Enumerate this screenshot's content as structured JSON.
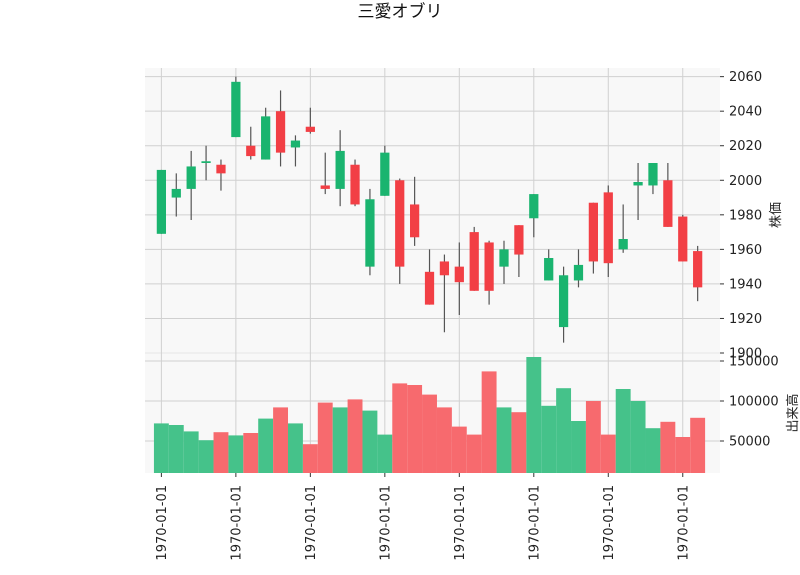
{
  "chart_data": {
    "type": "candlestick",
    "title": "三愛オブリ",
    "price_panel": {
      "ylabel": "株価",
      "ylim": [
        1900,
        2065
      ],
      "yticks": [
        1900,
        1920,
        1940,
        1960,
        1980,
        2000,
        2020,
        2040,
        2060
      ]
    },
    "volume_panel": {
      "ylabel": "出来高",
      "ylim": [
        10000,
        160000
      ],
      "yticks": [
        50000,
        100000,
        150000
      ]
    },
    "x_tick_labels": [
      "1970-01-01",
      "1970-01-01",
      "1970-01-01",
      "1970-01-01",
      "1970-01-01",
      "1970-01-01",
      "1970-01-01",
      "1970-01-01"
    ],
    "x_tick_candle_index": [
      0,
      5,
      10,
      15,
      20,
      25,
      30,
      35
    ],
    "grid": true,
    "colors": {
      "up": "#1ab46f",
      "down": "#f23f45",
      "volume_up": "#45c28a",
      "volume_down": "#f76a6e",
      "wick": "#555555"
    },
    "candles": [
      {
        "open": 1969,
        "high": 2006,
        "low": 1969,
        "close": 2006,
        "volume": 72000
      },
      {
        "open": 1990,
        "high": 2004,
        "low": 1979,
        "close": 1995,
        "volume": 70000
      },
      {
        "open": 1995,
        "high": 2017,
        "low": 1977,
        "close": 2008,
        "volume": 62000
      },
      {
        "open": 2010,
        "high": 2020,
        "low": 2000,
        "close": 2011,
        "volume": 51000
      },
      {
        "open": 2009,
        "high": 2012,
        "low": 1994,
        "close": 2004,
        "volume": 61000
      },
      {
        "open": 2025,
        "high": 2060,
        "low": 2025,
        "close": 2057,
        "volume": 57000
      },
      {
        "open": 2020,
        "high": 2031,
        "low": 2012,
        "close": 2014,
        "volume": 60000
      },
      {
        "open": 2012,
        "high": 2042,
        "low": 2012,
        "close": 2037,
        "volume": 78000
      },
      {
        "open": 2040,
        "high": 2052,
        "low": 2008,
        "close": 2016,
        "volume": 92000
      },
      {
        "open": 2019,
        "high": 2026,
        "low": 2008,
        "close": 2023,
        "volume": 72000
      },
      {
        "open": 2031,
        "high": 2042,
        "low": 2027,
        "close": 2028,
        "volume": 46000
      },
      {
        "open": 1997,
        "high": 2016,
        "low": 1992,
        "close": 1995,
        "volume": 98000
      },
      {
        "open": 1995,
        "high": 2029,
        "low": 1985,
        "close": 2017,
        "volume": 92000
      },
      {
        "open": 2009,
        "high": 2012,
        "low": 1985,
        "close": 1986,
        "volume": 102000
      },
      {
        "open": 1950,
        "high": 1995,
        "low": 1945,
        "close": 1989,
        "volume": 88000
      },
      {
        "open": 1991,
        "high": 2020,
        "low": 1991,
        "close": 2016,
        "volume": 58000
      },
      {
        "open": 2000,
        "high": 2001,
        "low": 1940,
        "close": 1950,
        "volume": 122000
      },
      {
        "open": 1986,
        "high": 2002,
        "low": 1962,
        "close": 1967,
        "volume": 120000
      },
      {
        "open": 1947,
        "high": 1960,
        "low": 1928,
        "close": 1928,
        "volume": 108000
      },
      {
        "open": 1953,
        "high": 1957,
        "low": 1912,
        "close": 1945,
        "volume": 92000
      },
      {
        "open": 1950,
        "high": 1964,
        "low": 1922,
        "close": 1941,
        "volume": 68000
      },
      {
        "open": 1970,
        "high": 1973,
        "low": 1936,
        "close": 1936,
        "volume": 58000
      },
      {
        "open": 1964,
        "high": 1965,
        "low": 1928,
        "close": 1936,
        "volume": 137000
      },
      {
        "open": 1950,
        "high": 1965,
        "low": 1940,
        "close": 1960,
        "volume": 92000
      },
      {
        "open": 1974,
        "high": 1974,
        "low": 1944,
        "close": 1957,
        "volume": 86000
      },
      {
        "open": 1978,
        "high": 1992,
        "low": 1967,
        "close": 1992,
        "volume": 155000
      },
      {
        "open": 1942,
        "high": 1960,
        "low": 1942,
        "close": 1955,
        "volume": 94000
      },
      {
        "open": 1915,
        "high": 1950,
        "low": 1906,
        "close": 1945,
        "volume": 116000
      },
      {
        "open": 1942,
        "high": 1960,
        "low": 1938,
        "close": 1951,
        "volume": 75000
      },
      {
        "open": 1987,
        "high": 1987,
        "low": 1946,
        "close": 1953,
        "volume": 100000
      },
      {
        "open": 1993,
        "high": 1997,
        "low": 1944,
        "close": 1952,
        "volume": 58000
      },
      {
        "open": 1960,
        "high": 1986,
        "low": 1958,
        "close": 1966,
        "volume": 115000
      },
      {
        "open": 1997,
        "high": 2010,
        "low": 1977,
        "close": 1999,
        "volume": 100000
      },
      {
        "open": 1997,
        "high": 2010,
        "low": 1992,
        "close": 2010,
        "volume": 66000
      },
      {
        "open": 2000,
        "high": 2010,
        "low": 1973,
        "close": 1973,
        "volume": 74000
      },
      {
        "open": 1979,
        "high": 1980,
        "low": 1953,
        "close": 1953,
        "volume": 55000
      },
      {
        "open": 1959,
        "high": 1962,
        "low": 1930,
        "close": 1938,
        "volume": 79000
      }
    ]
  }
}
